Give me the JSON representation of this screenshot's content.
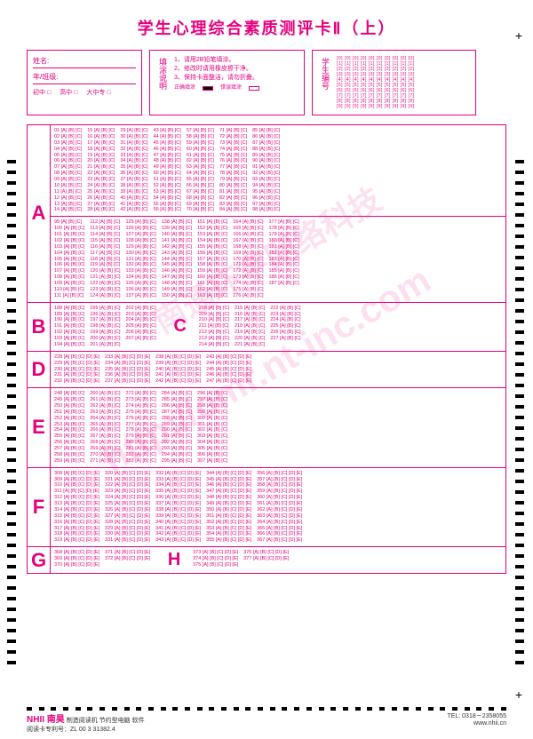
{
  "title": "学生心理综合素质测评卡Ⅱ（上）",
  "colors": {
    "primary": "#e6007e",
    "text": "#333",
    "bg": "#ffffff"
  },
  "header": {
    "name_label": "姓名:",
    "class_label": "年/班级:",
    "levels": [
      "初中 □",
      "高中 □",
      "大中专 □"
    ],
    "instructions_label": "填涂说明",
    "instructions": [
      "1、请用2B铅笔填涂。",
      "2、修改时请用橡皮擦干净。",
      "3、保持卡面整洁，请勿折叠。"
    ],
    "correct_fill": "正确填涂",
    "wrong_fill": "错误填涂",
    "student_id_label": "学生编号",
    "id_digits": [
      0,
      1,
      2,
      3,
      4,
      5,
      6,
      7,
      8,
      9
    ]
  },
  "sections": [
    {
      "label": "A",
      "type": "3opt",
      "ranges": [
        [
          1,
          98
        ],
        [
          99,
          187
        ]
      ],
      "cols": 7,
      "opts": "[A] [B] [C]"
    },
    {
      "label": "B",
      "type": "3opt",
      "ranges": [
        [
          188,
          207
        ]
      ],
      "cols": 3,
      "opts": "[A] [B] [C]",
      "inline_label": "C",
      "inline_ranges": [
        [
          208,
          227
        ]
      ],
      "inline_cols": 3
    },
    {
      "label": "D",
      "type": "5opt",
      "ranges": [
        [
          228,
          247
        ]
      ],
      "cols": 4,
      "opts": "[A] [B] [C] [D] [E]"
    },
    {
      "label": "E",
      "type": "3opt",
      "ranges": [
        [
          248,
          307
        ]
      ],
      "cols": 5,
      "opts": "[A] [B] [C]"
    },
    {
      "label": "F",
      "type": "5opt",
      "ranges": [
        [
          308,
          367
        ]
      ],
      "cols": 5,
      "opts": "[A] [B] [C] [D] [E]"
    },
    {
      "label": "G",
      "type": "5opt",
      "ranges": [
        [
          368,
          372
        ]
      ],
      "cols": 2,
      "opts": "[A] [B] [C] [D] [E]",
      "inline_label": "H",
      "inline_ranges": [
        [
          373,
          377
        ]
      ],
      "inline_cols": 2
    }
  ],
  "watermark1": "南通环宇网络科技",
  "watermark2": "http://omr.nt-inc.com",
  "footer": {
    "brand": "NHII 南昊",
    "desc": "制造阅读机 节约型电脑 软件",
    "patent": "阅读卡专利号：ZL 00 3 31382.4",
    "tel": "TEL: 0318－2358055",
    "url": "www.nhii.cn"
  },
  "timing_marks": 48
}
